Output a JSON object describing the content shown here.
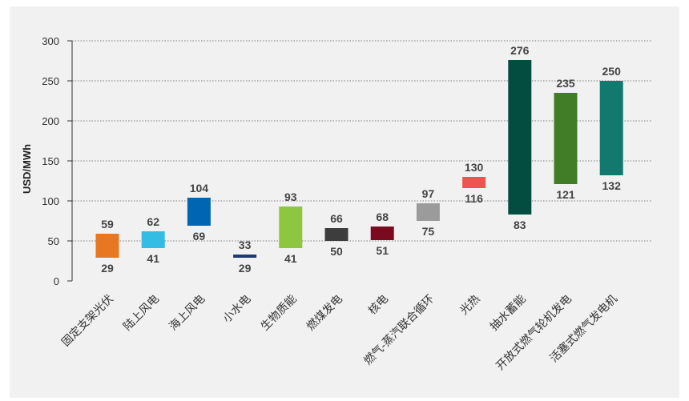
{
  "chart_data": {
    "type": "floating-bar",
    "title": "",
    "xlabel": "",
    "ylabel": "USD/MWh",
    "ylim": [
      0,
      300
    ],
    "yticks": [
      0,
      50,
      100,
      150,
      200,
      250,
      300
    ],
    "grid": "horizontal-dotted",
    "categories": [
      "固定支架光伏",
      "陆上风电",
      "海上风电",
      "小水电",
      "生物质能",
      "燃煤发电",
      "核电",
      "燃气-蒸汽联合循环",
      "光热",
      "抽水蓄能",
      "开放式燃气轮机发电",
      "活塞式燃气发电机"
    ],
    "low": [
      29,
      41,
      69,
      29,
      41,
      50,
      51,
      75,
      116,
      83,
      121,
      132
    ],
    "high": [
      59,
      62,
      104,
      33,
      93,
      66,
      68,
      97,
      130,
      276,
      235,
      250
    ],
    "colors": [
      "#e87722",
      "#33bde5",
      "#0066b3",
      "#1e3a6e",
      "#8dc63f",
      "#3d3d3d",
      "#7a0a1e",
      "#9b9b9b",
      "#ef5350",
      "#024d40",
      "#417d26",
      "#11796e"
    ]
  }
}
